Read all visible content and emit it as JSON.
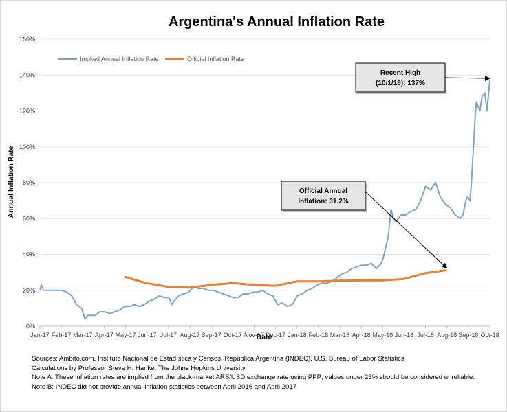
{
  "chart_data": {
    "type": "line",
    "title": "Argentina's Annual Inflation Rate",
    "xlabel": "Date",
    "ylabel": "Annual Inflation Rate",
    "ylim": [
      0,
      160
    ],
    "y_ticks": [
      "0%",
      "20%",
      "40%",
      "60%",
      "80%",
      "100%",
      "120%",
      "140%",
      "160%"
    ],
    "x_ticks": [
      "Jan-17",
      "Feb-17",
      "Mar-17",
      "Apr-17",
      "May-17",
      "Jun-17",
      "Jul-17",
      "Aug-17",
      "Sep-17",
      "Oct-17",
      "Nov-17",
      "Dec-17",
      "Jan-18",
      "Feb-18",
      "Mar-18",
      "Apr-18",
      "May-18",
      "Jun-18",
      "Jul-18",
      "Aug-18",
      "Sep-18",
      "Oct-18"
    ],
    "grid": "horizontal",
    "legend_position": "top-left",
    "series": [
      {
        "name": "Implied Annual Inflation Rate",
        "color": "#7ba3cc",
        "x": [
          "2017-01-01",
          "2017-01-03",
          "2017-01-06",
          "2017-01-15",
          "2017-01-25",
          "2017-02-01",
          "2017-02-08",
          "2017-02-15",
          "2017-02-22",
          "2017-03-01",
          "2017-03-06",
          "2017-03-10",
          "2017-03-15",
          "2017-03-20",
          "2017-03-27",
          "2017-04-03",
          "2017-04-10",
          "2017-04-17",
          "2017-04-24",
          "2017-05-01",
          "2017-05-08",
          "2017-05-15",
          "2017-05-22",
          "2017-05-29",
          "2017-06-05",
          "2017-06-12",
          "2017-06-19",
          "2017-06-26",
          "2017-07-03",
          "2017-07-07",
          "2017-07-12",
          "2017-07-17",
          "2017-07-24",
          "2017-07-31",
          "2017-08-07",
          "2017-08-14",
          "2017-08-21",
          "2017-08-28",
          "2017-09-04",
          "2017-09-11",
          "2017-09-18",
          "2017-09-25",
          "2017-10-02",
          "2017-10-09",
          "2017-10-16",
          "2017-10-23",
          "2017-10-30",
          "2017-11-06",
          "2017-11-13",
          "2017-11-20",
          "2017-11-27",
          "2017-12-04",
          "2017-12-11",
          "2017-12-18",
          "2017-12-25",
          "2018-01-01",
          "2018-01-08",
          "2018-01-15",
          "2018-01-22",
          "2018-01-29",
          "2018-02-05",
          "2018-02-12",
          "2018-02-19",
          "2018-02-26",
          "2018-03-05",
          "2018-03-12",
          "2018-03-19",
          "2018-03-26",
          "2018-04-02",
          "2018-04-09",
          "2018-04-16",
          "2018-04-23",
          "2018-04-30",
          "2018-05-03",
          "2018-05-07",
          "2018-05-10",
          "2018-05-14",
          "2018-05-17",
          "2018-05-21",
          "2018-05-28",
          "2018-06-04",
          "2018-06-11",
          "2018-06-18",
          "2018-06-25",
          "2018-07-02",
          "2018-07-09",
          "2018-07-16",
          "2018-07-23",
          "2018-07-30",
          "2018-08-06",
          "2018-08-13",
          "2018-08-20",
          "2018-08-24",
          "2018-08-28",
          "2018-08-30",
          "2018-09-03",
          "2018-09-05",
          "2018-09-10",
          "2018-09-12",
          "2018-09-17",
          "2018-09-20",
          "2018-09-24",
          "2018-09-27",
          "2018-10-01"
        ],
        "y": [
          20,
          23,
          20,
          20,
          20,
          20,
          19,
          17,
          12,
          10,
          4,
          6,
          6,
          6,
          8,
          8,
          7,
          8,
          9,
          11,
          11,
          12,
          11,
          12,
          14,
          15,
          17,
          16,
          16,
          12,
          15,
          17,
          18,
          19,
          22,
          21,
          21,
          20,
          20,
          19,
          18,
          17,
          16,
          16,
          18,
          18,
          19,
          19,
          20,
          18,
          17,
          12,
          13,
          11,
          12,
          17,
          18,
          20,
          21,
          23,
          24,
          24,
          25,
          27,
          29,
          30,
          32,
          33,
          34,
          34,
          35,
          32,
          35,
          38,
          45,
          50,
          65,
          60,
          58,
          62,
          62,
          64,
          65,
          70,
          78,
          76,
          80,
          72,
          68,
          66,
          62,
          60,
          62,
          70,
          72,
          70,
          80,
          115,
          125,
          120,
          128,
          130,
          120,
          137
        ]
      },
      {
        "name": "Official Inflation Rate",
        "color": "#ed7d31",
        "x": [
          "2017-05-01",
          "2017-06-01",
          "2017-07-01",
          "2017-08-01",
          "2017-09-01",
          "2017-10-01",
          "2017-11-01",
          "2017-12-01",
          "2018-01-01",
          "2018-02-01",
          "2018-03-01",
          "2018-04-01",
          "2018-05-01",
          "2018-06-01",
          "2018-07-01",
          "2018-08-01"
        ],
        "y": [
          27.5,
          24,
          22,
          21.5,
          23,
          24,
          23,
          22.5,
          25,
          25,
          25.4,
          25.5,
          25.5,
          26.3,
          29.5,
          31.2
        ]
      }
    ],
    "annotations": [
      {
        "label": "recent_high",
        "lines": [
          "Recent High",
          "(10/1/18): 137%"
        ],
        "date": "2018-10-01",
        "value": 137
      },
      {
        "label": "official",
        "lines": [
          "Official Annual",
          "Inflation: 31.2%"
        ],
        "date": "2018-08-01",
        "value": 31.2
      }
    ]
  },
  "notes": [
    "Sources: Ambito.com, Instituto Nacional de Estadística y Censos. República Argentina (INDEC), U.S. Bureau of Labor Statistics",
    "Calculations by Professor Steve H. Hanke, The Johns Hopkins University",
    "Note A: These inflation rates are implied from the black-market ARS/USD exchange rate using PPP; values under 25% should be considered unreliable.",
    "Note B: INDEC did not provide annual inflation statistics between April 2016 and April 2017"
  ]
}
